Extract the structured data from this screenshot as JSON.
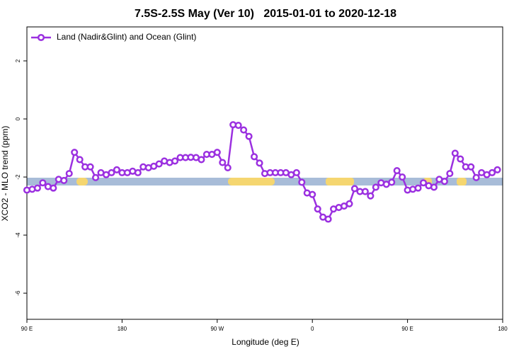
{
  "chart_data": {
    "type": "line",
    "title": "7.5S-2.5S May (Ver 10)   2015-01-01 to 2020-12-18",
    "x_label": "Longitude (deg E)",
    "y_label": "XCO2 - MLO trend (ppm)",
    "x": [
      90,
      95,
      100,
      105,
      110,
      115,
      120,
      125,
      130,
      135,
      140,
      145,
      150,
      155,
      160,
      165,
      170,
      175,
      180,
      185,
      190,
      195,
      200,
      205,
      210,
      215,
      220,
      225,
      230,
      235,
      240,
      245,
      250,
      255,
      260,
      265,
      270,
      275,
      280,
      285,
      290,
      295,
      300,
      305,
      310,
      315,
      320,
      325,
      330,
      335,
      340,
      345,
      350,
      355,
      360,
      365,
      370,
      375,
      380,
      385,
      390,
      395,
      400,
      405,
      410,
      415,
      420,
      425,
      430,
      435,
      440,
      445,
      450,
      455,
      460,
      465,
      470,
      475,
      480,
      485,
      490,
      495,
      500,
      505,
      510,
      515,
      520,
      525,
      530,
      535
    ],
    "series": [
      {
        "name": "Land (Nadir&Glint) and Ocean (Glint)",
        "color": "#9b30e0",
        "values": [
          -2.45,
          -2.42,
          -2.38,
          -2.2,
          -2.33,
          -2.38,
          -2.08,
          -2.12,
          -1.88,
          -1.15,
          -1.4,
          -1.65,
          -1.65,
          -2.02,
          -1.85,
          -1.92,
          -1.85,
          -1.75,
          -1.85,
          -1.85,
          -1.8,
          -1.85,
          -1.65,
          -1.68,
          -1.63,
          -1.55,
          -1.45,
          -1.5,
          -1.45,
          -1.33,
          -1.33,
          -1.32,
          -1.33,
          -1.4,
          -1.22,
          -1.22,
          -1.15,
          -1.5,
          -1.68,
          -0.2,
          -0.22,
          -0.38,
          -0.6,
          -1.3,
          -1.52,
          -1.88,
          -1.85,
          -1.85,
          -1.85,
          -1.85,
          -1.92,
          -1.85,
          -2.18,
          -2.55,
          -2.6,
          -3.1,
          -3.38,
          -3.45,
          -3.1,
          -3.05,
          -3.0,
          -2.92,
          -2.4,
          -2.5,
          -2.5,
          -2.65,
          -2.35,
          -2.2,
          -2.25,
          -2.18,
          -1.78,
          -2.0,
          -2.45,
          -2.42,
          -2.38,
          -2.2,
          -2.3,
          -2.35,
          -2.08,
          -2.15,
          -1.88,
          -1.18,
          -1.38,
          -1.65,
          -1.65,
          -2.02,
          -1.85,
          -1.92,
          -1.85,
          -1.75
        ]
      }
    ],
    "xlim": [
      90,
      540
    ],
    "ylim": [
      -6.9,
      3.17
    ],
    "xticks": [
      {
        "value": 90,
        "label": "90 E"
      },
      180,
      {
        "value": 270,
        "label": "90 W"
      },
      {
        "value": 360,
        "label": "0"
      },
      {
        "value": 450,
        "label": "90 E"
      },
      {
        "value": 540,
        "label": "180"
      }
    ],
    "yticks": [
      -6,
      -4,
      -2,
      0,
      2
    ],
    "legend": "upper left"
  }
}
